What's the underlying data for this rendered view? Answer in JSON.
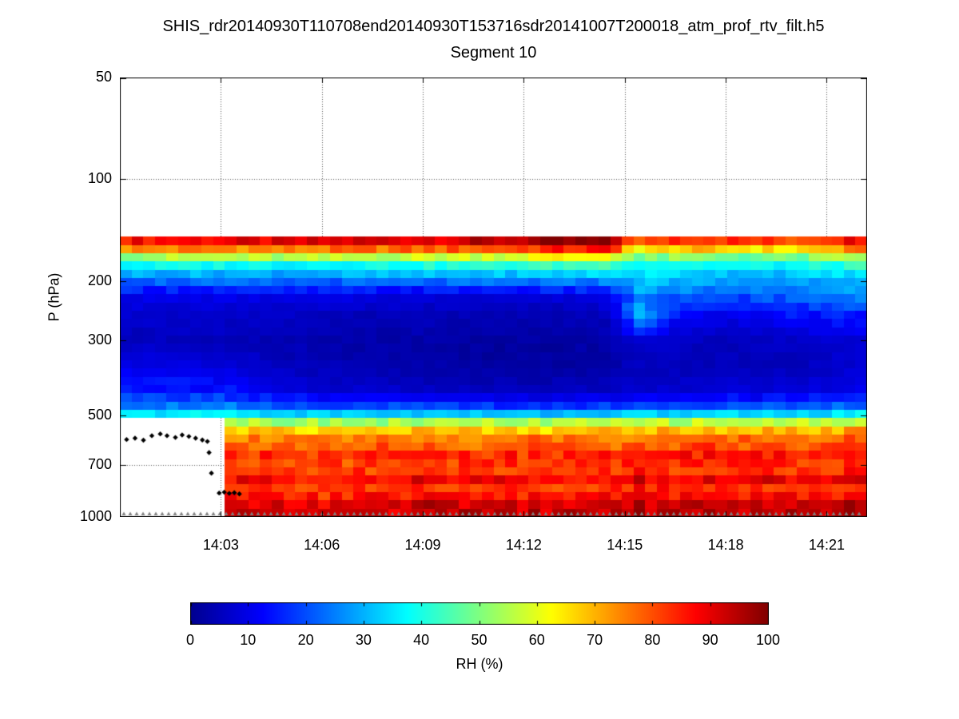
{
  "figure": {
    "title": "SHIS_rdr20140930T110708end20140930T153716sdr20141007T200018_atm_prof_rtv_filt.h5",
    "subtitle": "Segment 10"
  },
  "chart_data": {
    "type": "heatmap",
    "title": "SHIS_rdr20140930T110708end20140930T153716sdr20141007T200018_atm_prof_rtv_filt.h5",
    "subtitle": "Segment 10",
    "xlabel": "",
    "ylabel": "P (hPa)",
    "y_axis": {
      "scale": "log",
      "range_hpa": [
        50,
        1000
      ],
      "ticks": [
        50,
        100,
        200,
        300,
        500,
        700,
        1000
      ],
      "tick_labels": [
        "50",
        "100",
        "200",
        "300",
        "500",
        "700",
        "1000"
      ],
      "orientation": "pressure increases downward"
    },
    "x_axis": {
      "unit": "time HH:MM",
      "range_minutes_after_1400": [
        0,
        22.2
      ],
      "tick_minutes": [
        3,
        6,
        9,
        12,
        15,
        18,
        21
      ],
      "tick_labels": [
        "14:03",
        "14:06",
        "14:09",
        "14:12",
        "14:15",
        "14:18",
        "14:21"
      ]
    },
    "colorbar": {
      "label": "RH (%)",
      "range": [
        0,
        100
      ],
      "ticks": [
        0,
        10,
        20,
        30,
        40,
        50,
        60,
        70,
        80,
        90,
        100
      ],
      "orientation": "horizontal"
    },
    "colormap": {
      "name": "jet",
      "stops": [
        {
          "pos": 0.0,
          "color": "#00008f"
        },
        {
          "pos": 0.125,
          "color": "#0000ff"
        },
        {
          "pos": 0.375,
          "color": "#00ffff"
        },
        {
          "pos": 0.625,
          "color": "#ffff00"
        },
        {
          "pos": 0.875,
          "color": "#ff0000"
        },
        {
          "pos": 1.0,
          "color": "#800000"
        }
      ]
    },
    "grid_lines": {
      "style": "dotted",
      "color": "#555555",
      "vertical": true,
      "horizontal": true
    },
    "no_data_color": "#ffffff",
    "no_data_regions": [
      {
        "label": "above retrieval top",
        "pressure_hpa_below": 148
      },
      {
        "label": "lower-left data gap",
        "time_minutes_before": 3.05,
        "pressure_hpa_above": 512
      }
    ],
    "rh_grid": {
      "time_minutes_after_1400": [
        0.9,
        3,
        5,
        7,
        9,
        11,
        13,
        14.6,
        15.4,
        16.5,
        18,
        20,
        21.9
      ],
      "pressure_hpa": [
        148,
        156,
        164,
        172,
        182,
        194,
        208,
        225,
        250,
        300,
        360,
        420,
        460,
        490,
        505,
        522,
        545,
        580,
        650,
        750,
        850,
        930,
        1000
      ],
      "rh_percent": [
        [
          90,
          92,
          93,
          95,
          96,
          97,
          100,
          100,
          82,
          92,
          90,
          86,
          94
        ],
        [
          85,
          86,
          85,
          88,
          88,
          90,
          95,
          96,
          70,
          80,
          78,
          75,
          85
        ],
        [
          68,
          70,
          68,
          70,
          72,
          74,
          78,
          80,
          55,
          62,
          60,
          58,
          68
        ],
        [
          50,
          52,
          50,
          52,
          54,
          55,
          58,
          60,
          45,
          48,
          46,
          45,
          52
        ],
        [
          35,
          36,
          35,
          36,
          37,
          38,
          40,
          42,
          38,
          38,
          36,
          36,
          40
        ],
        [
          28,
          28,
          27,
          28,
          28,
          29,
          30,
          32,
          34,
          33,
          30,
          30,
          34
        ],
        [
          18,
          18,
          17,
          17,
          17,
          18,
          18,
          20,
          30,
          28,
          25,
          26,
          30
        ],
        [
          10,
          10,
          9,
          9,
          8,
          8,
          8,
          10,
          26,
          22,
          18,
          22,
          25
        ],
        [
          7,
          7,
          6,
          5,
          5,
          4,
          4,
          6,
          30,
          14,
          10,
          14,
          16
        ],
        [
          5,
          5,
          4,
          3,
          3,
          2,
          2,
          3,
          8,
          6,
          5,
          6,
          8
        ],
        [
          10,
          9,
          5,
          4,
          3,
          2,
          2,
          3,
          5,
          5,
          5,
          5,
          7
        ],
        [
          14,
          14,
          8,
          7,
          6,
          5,
          5,
          6,
          7,
          7,
          8,
          8,
          10
        ],
        [
          22,
          22,
          16,
          15,
          14,
          13,
          13,
          14,
          15,
          15,
          16,
          16,
          18
        ],
        [
          32,
          34,
          30,
          30,
          29,
          28,
          28,
          29,
          30,
          30,
          31,
          30,
          33
        ],
        [
          40,
          42,
          38,
          38,
          37,
          37,
          36,
          37,
          38,
          38,
          39,
          38,
          41
        ],
        [
          null,
          55,
          52,
          52,
          52,
          53,
          52,
          53,
          54,
          54,
          55,
          54,
          56
        ],
        [
          null,
          70,
          68,
          68,
          69,
          70,
          69,
          70,
          71,
          70,
          72,
          70,
          72
        ],
        [
          null,
          78,
          76,
          77,
          77,
          78,
          78,
          78,
          79,
          78,
          80,
          78,
          80
        ],
        [
          null,
          82,
          80,
          81,
          81,
          82,
          82,
          82,
          83,
          82,
          84,
          82,
          84
        ],
        [
          null,
          84,
          83,
          83,
          84,
          85,
          84,
          85,
          86,
          85,
          86,
          84,
          86
        ],
        [
          null,
          86,
          85,
          85,
          86,
          87,
          86,
          87,
          88,
          87,
          88,
          86,
          88
        ],
        [
          null,
          90,
          89,
          89,
          90,
          91,
          90,
          91,
          92,
          91,
          92,
          90,
          92
        ],
        [
          null,
          97,
          96,
          96,
          97,
          98,
          97,
          98,
          98,
          98,
          98,
          97,
          98
        ]
      ]
    },
    "cloud_markers": {
      "marker": "diamond",
      "color": "#000000",
      "points_time_pressure": [
        [
          0.2,
          590
        ],
        [
          0.45,
          585
        ],
        [
          0.7,
          593
        ],
        [
          0.95,
          575
        ],
        [
          1.2,
          568
        ],
        [
          1.4,
          575
        ],
        [
          1.65,
          582
        ],
        [
          1.85,
          572
        ],
        [
          2.05,
          578
        ],
        [
          2.25,
          585
        ],
        [
          2.45,
          592
        ],
        [
          2.6,
          598
        ],
        [
          2.65,
          645
        ],
        [
          2.72,
          742
        ],
        [
          2.95,
          850
        ],
        [
          3.1,
          845
        ],
        [
          3.25,
          852
        ],
        [
          3.4,
          848
        ],
        [
          3.55,
          855
        ]
      ]
    },
    "surface_markers": {
      "marker": "triangle",
      "color": "#808080",
      "pressure_hpa": 1000,
      "extent": "full time range"
    }
  }
}
